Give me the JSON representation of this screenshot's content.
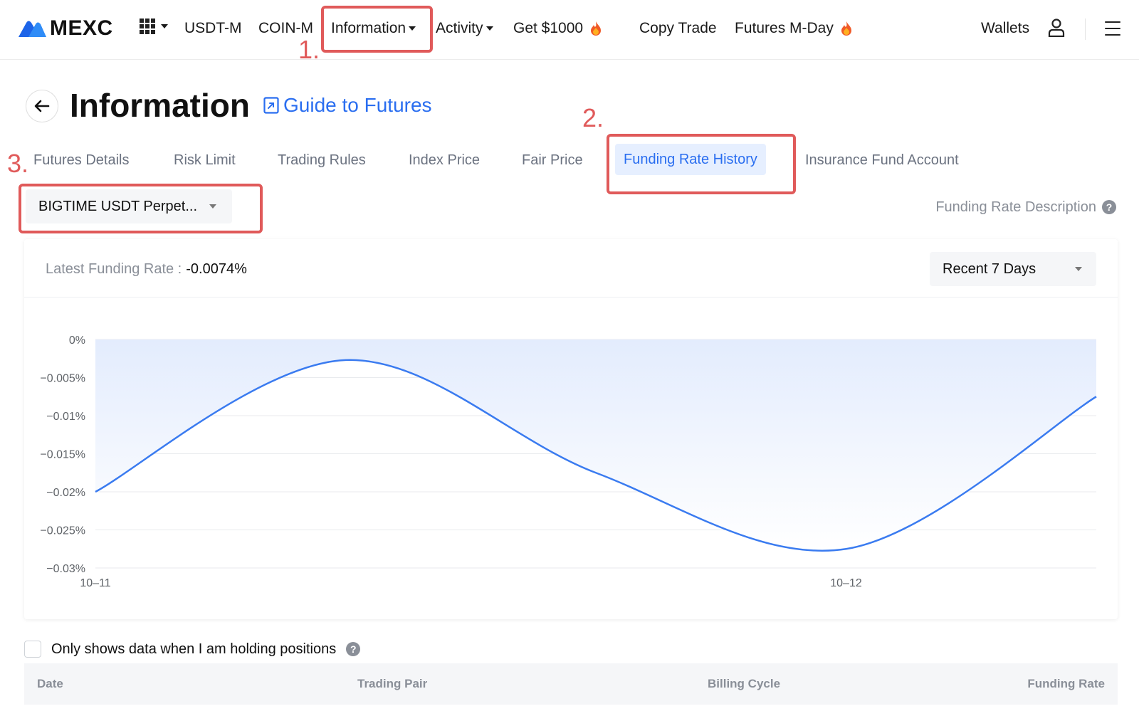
{
  "nav": {
    "brand": "MEXC",
    "items": [
      {
        "label": "USDT-M"
      },
      {
        "label": "COIN-M"
      },
      {
        "label": "Information",
        "has_caret": true
      },
      {
        "label": "Activity",
        "has_caret": true
      },
      {
        "label": "Get $1000",
        "icon": "fire-icon"
      },
      {
        "label": "Copy Trade"
      },
      {
        "label": "Futures M-Day",
        "icon": "fire-icon"
      }
    ],
    "wallets": "Wallets",
    "icons": [
      "apps-grid-icon",
      "user-icon",
      "hamburger-menu-icon"
    ],
    "accent_color": "#2a6ef0"
  },
  "annotations": [
    "1.",
    "2.",
    "3."
  ],
  "page": {
    "title": "Information",
    "guide_link": "Guide to Futures"
  },
  "tabs": [
    {
      "label": "Futures Details",
      "active": false
    },
    {
      "label": "Risk Limit",
      "active": false
    },
    {
      "label": "Trading Rules",
      "active": false
    },
    {
      "label": "Index Price",
      "active": false
    },
    {
      "label": "Fair Price",
      "active": false
    },
    {
      "label": "Funding Rate History",
      "active": true
    },
    {
      "label": "Insurance Fund Account",
      "active": false
    }
  ],
  "contract_select": {
    "value": "BIGTIME USDT Perpet..."
  },
  "funding_description": "Funding Rate Description",
  "card": {
    "latest_label": "Latest Funding Rate :",
    "latest_value": "-0.0074%",
    "range_select": "Recent 7 Days"
  },
  "chart_data": {
    "type": "area",
    "x": [
      "10-11 00:00",
      "10-11 08:00",
      "10-11 16:00",
      "10-12 00:00",
      "10-12 08:00"
    ],
    "series": [
      {
        "values": [
          -0.02,
          -0.0027,
          -0.0175,
          -0.0275,
          -0.0075
        ]
      }
    ],
    "x_tick_labels": [
      "10–11",
      "10–12"
    ],
    "y_tick_labels": [
      "0%",
      "−0.005%",
      "−0.01%",
      "−0.015%",
      "−0.02%",
      "−0.025%",
      "−0.03%"
    ],
    "ylim": [
      -0.03,
      0
    ],
    "grid": true,
    "line_color": "#3a7bf0",
    "fill_color": "#e3ecfd"
  },
  "table": {
    "holding_label": "Only shows data when I am holding positions",
    "headers": [
      "Date",
      "Trading Pair",
      "Billing Cycle",
      "Funding Rate"
    ]
  }
}
